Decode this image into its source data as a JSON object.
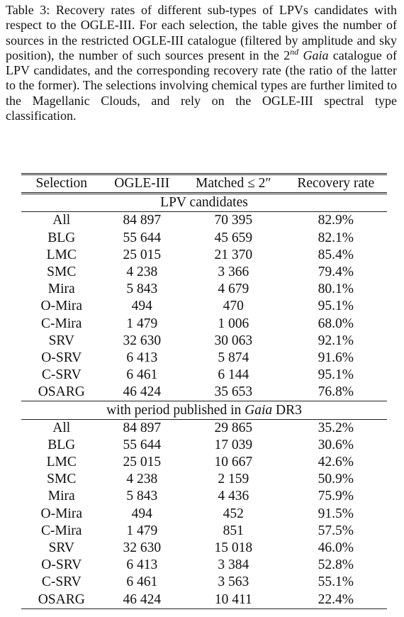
{
  "caption": [
    "Table 3: Recovery rates of different sub-types of LPVs candidates with respect to the OGLE-III. For each selection, the table gives the number of sources in the restricted OGLE-III catalogue (filtered by amplitude and sky position), the number of such sources present in the ",
    "2",
    "nd",
    "Gaia",
    " catalogue of LPV candidates, and the corresponding recovery rate (the ratio of the latter to the former). The selections involving chemical types are further limited to the Magellanic Clouds, and rely on the OGLE-III spectral type classification."
  ],
  "table": {
    "header": [
      "Selection",
      "OGLE-III",
      "Matched ≤ 2″",
      "Recovery rate"
    ],
    "sections": [
      {
        "title": [
          "LPV candidates"
        ],
        "rows": [
          [
            "All",
            "84 897",
            "70 395",
            "82.9%"
          ],
          [
            "BLG",
            "55 644",
            "45 659",
            "82.1%"
          ],
          [
            "LMC",
            "25 015",
            "21 370",
            "85.4%"
          ],
          [
            "SMC",
            "4 238",
            "3 366",
            "79.4%"
          ],
          [
            "Mira",
            "5 843",
            "4 679",
            "80.1%"
          ],
          [
            "O-Mira",
            "494",
            "470",
            "95.1%"
          ],
          [
            "C-Mira",
            "1 479",
            "1 006",
            "68.0%"
          ],
          [
            "SRV",
            "32 630",
            "30 063",
            "92.1%"
          ],
          [
            "O-SRV",
            "6 413",
            "5 874",
            "91.6%"
          ],
          [
            "C-SRV",
            "6 461",
            "6 144",
            "95.1%"
          ],
          [
            "OSARG",
            "46 424",
            "35 653",
            "76.8%"
          ]
        ]
      },
      {
        "title": [
          "with period published in ",
          "Gaia",
          " DR3"
        ],
        "rows": [
          [
            "All",
            "84 897",
            "29 865",
            "35.2%"
          ],
          [
            "BLG",
            "55 644",
            "17 039",
            "30.6%"
          ],
          [
            "LMC",
            "25 015",
            "10 667",
            "42.6%"
          ],
          [
            "SMC",
            "4 238",
            "2 159",
            "50.9%"
          ],
          [
            "Mira",
            "5 843",
            "4 436",
            "75.9%"
          ],
          [
            "O-Mira",
            "494",
            "452",
            "91.5%"
          ],
          [
            "C-Mira",
            "1 479",
            "851",
            "57.5%"
          ],
          [
            "SRV",
            "32 630",
            "15 018",
            "46.0%"
          ],
          [
            "O-SRV",
            "6 413",
            "3 384",
            "52.8%"
          ],
          [
            "C-SRV",
            "6 461",
            "3 563",
            "55.1%"
          ],
          [
            "OSARG",
            "46 424",
            "10 411",
            "22.4%"
          ]
        ]
      }
    ]
  }
}
